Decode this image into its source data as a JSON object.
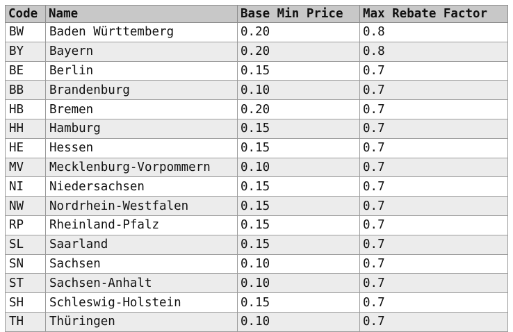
{
  "table": {
    "headers": [
      "Code",
      "Name",
      "Base Min Price",
      "Max Rebate Factor"
    ],
    "rows": [
      [
        "BW",
        "Baden Württemberg",
        "0.20",
        "0.8"
      ],
      [
        "BY",
        "Bayern",
        "0.20",
        "0.8"
      ],
      [
        "BE",
        "Berlin",
        "0.15",
        "0.7"
      ],
      [
        "BB",
        "Brandenburg",
        "0.10",
        "0.7"
      ],
      [
        "HB",
        "Bremen",
        "0.20",
        "0.7"
      ],
      [
        "HH",
        "Hamburg",
        "0.15",
        "0.7"
      ],
      [
        "HE",
        "Hessen",
        "0.15",
        "0.7"
      ],
      [
        "MV",
        "Mecklenburg-Vorpommern",
        "0.10",
        "0.7"
      ],
      [
        "NI",
        "Niedersachsen",
        "0.15",
        "0.7"
      ],
      [
        "NW",
        "Nordrhein-Westfalen",
        "0.15",
        "0.7"
      ],
      [
        "RP",
        "Rheinland-Pfalz",
        "0.15",
        "0.7"
      ],
      [
        "SL",
        "Saarland",
        "0.15",
        "0.7"
      ],
      [
        "SN",
        "Sachsen",
        "0.10",
        "0.7"
      ],
      [
        "ST",
        "Sachsen-Anhalt",
        "0.10",
        "0.7"
      ],
      [
        "SH",
        "Schleswig-Holstein",
        "0.15",
        "0.7"
      ],
      [
        "TH",
        "Thüringen",
        "0.10",
        "0.7"
      ]
    ]
  }
}
